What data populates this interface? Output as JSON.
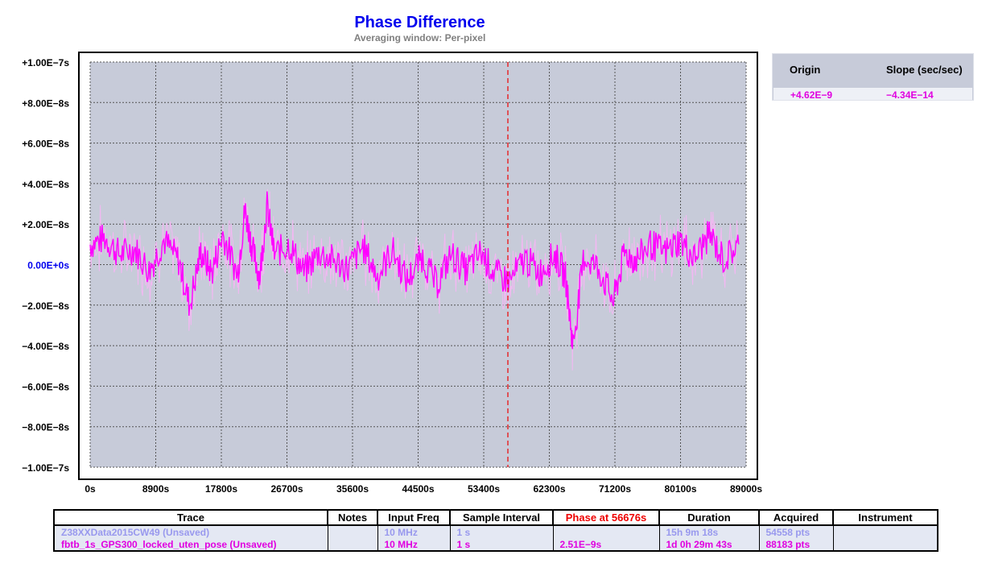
{
  "chart_data": {
    "type": "line",
    "title": "Phase Difference",
    "subtitle": "Averaging window: Per-pixel",
    "xlabel": "",
    "ylabel": "",
    "xlim": [
      0,
      89000
    ],
    "ylim": [
      -1e-07,
      1e-07
    ],
    "x_ticks": [
      "0s",
      "8900s",
      "17800s",
      "26700s",
      "35600s",
      "44500s",
      "53400s",
      "62300s",
      "71200s",
      "80100s",
      "89000s"
    ],
    "y_ticks": [
      "+1.00E−7s",
      "+8.00E−8s",
      "+6.00E−8s",
      "+4.00E−8s",
      "+2.00E−8s",
      "0.00E+0s",
      "−2.00E−8s",
      "−4.00E−8s",
      "−6.00E−8s",
      "−8.00E−8s",
      "−1.00E−7s"
    ],
    "grid": true,
    "cursor_x": 56676,
    "series": [
      {
        "name": "fbtb_1s_GPS300_locked_uten_pose",
        "color": "#ff00ff",
        "envelope_color": "#f2b8f2",
        "x": [
          0,
          2000,
          4000,
          6000,
          8000,
          10000,
          12000,
          13500,
          15000,
          16500,
          18000,
          20000,
          21000,
          22000,
          23000,
          24000,
          25000,
          27000,
          29000,
          31000,
          33000,
          35000,
          37000,
          39000,
          41000,
          43000,
          45000,
          47000,
          49000,
          51000,
          53000,
          55000,
          57000,
          59000,
          61000,
          63000,
          64500,
          65500,
          67000,
          69000,
          71000,
          72500,
          74000,
          76000,
          78000,
          80000,
          82000,
          84000,
          86000,
          88000
        ],
        "y": [
          1e-08,
          1.3e-08,
          5e-09,
          8e-09,
          -3e-09,
          1.2e-08,
          2e-09,
          -2e-08,
          6e-09,
          -4e-09,
          1.5e-08,
          -5e-09,
          2.7e-08,
          8e-09,
          -6e-09,
          2.9e-08,
          5e-09,
          1e-08,
          -4e-09,
          6e-09,
          2e-09,
          -2e-09,
          9e-09,
          -6e-09,
          7e-09,
          -8e-09,
          4e-09,
          -1e-08,
          5e-09,
          -3e-09,
          6e-09,
          -5e-09,
          -8e-09,
          3e-09,
          -4e-09,
          5e-09,
          -6e-09,
          -4e-08,
          4e-09,
          -2e-09,
          -1.8e-08,
          6e-09,
          2e-09,
          1e-08,
          6e-09,
          1.2e-08,
          3e-09,
          1.5e-08,
          2e-09,
          1e-08
        ]
      }
    ]
  },
  "stats": {
    "origin_label": "Origin",
    "slope_label": "Slope (sec/sec)",
    "origin_value": "+4.62E−9",
    "slope_value": "−4.34E−14"
  },
  "table": {
    "headers": [
      "Trace",
      "Notes",
      "Input Freq",
      "Sample Interval",
      "Phase at 56676s",
      "Duration",
      "Acquired",
      "Instrument"
    ],
    "rows": [
      {
        "trace": "Z38XXData2015CW49 (Unsaved)",
        "notes": "",
        "freq": "10 MHz",
        "interval": "1 s",
        "phase": "",
        "duration": "15h 9m 18s",
        "acquired": "54558 pts",
        "instrument": ""
      },
      {
        "trace": "fbtb_1s_GPS300_locked_uten_pose  (Unsaved)",
        "notes": "",
        "freq": "10 MHz",
        "interval": "1 s",
        "phase": "2.51E−9s",
        "duration": "1d 0h 29m 43s",
        "acquired": "88183 pts",
        "instrument": ""
      }
    ]
  },
  "colors": {
    "plot_bg": "#c7cbd9",
    "trace1": "#9999ee",
    "trace2": "#e000e0",
    "highlight": "#ee0000"
  }
}
